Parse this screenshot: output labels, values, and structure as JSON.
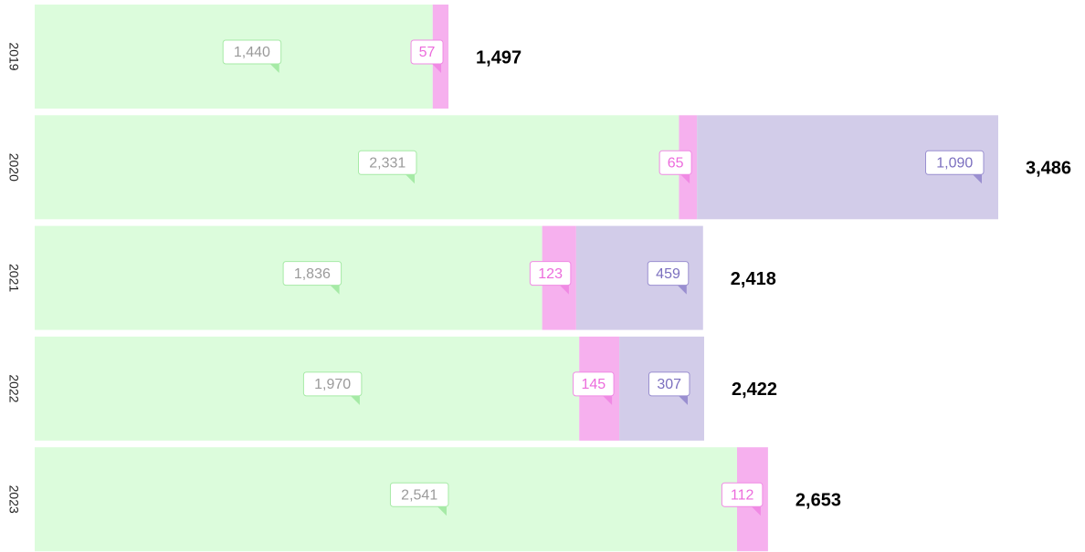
{
  "chart_data": {
    "type": "stacked-bar-horizontal",
    "categories": [
      "2019",
      "2020",
      "2021",
      "2022",
      "2023"
    ],
    "series": [
      {
        "color": "#dcfcdc",
        "label_color": "#9a9a9a",
        "border_color": "#a6eaa6",
        "values": [
          1440,
          2331,
          1836,
          1970,
          2541
        ],
        "value_labels": [
          "1,440",
          "2,331",
          "1,836",
          "1,970",
          "2,541"
        ]
      },
      {
        "color": "#f6b0ee",
        "label_color": "#ec6bdc",
        "border_color": "#f08ae4",
        "values": [
          57,
          65,
          123,
          145,
          112
        ],
        "value_labels": [
          "57",
          "65",
          "123",
          "145",
          "112"
        ]
      },
      {
        "color": "#d2cce9",
        "label_color": "#7b6fbf",
        "border_color": "#9a8fd0",
        "values": [
          null,
          1090,
          459,
          307,
          null
        ],
        "value_labels": [
          null,
          "1,090",
          "459",
          "307",
          null
        ]
      }
    ],
    "totals": [
      1497,
      3486,
      2418,
      2422,
      2653
    ],
    "total_labels": [
      "1,497",
      "3,486",
      "2,418",
      "2,422",
      "2,653"
    ]
  }
}
